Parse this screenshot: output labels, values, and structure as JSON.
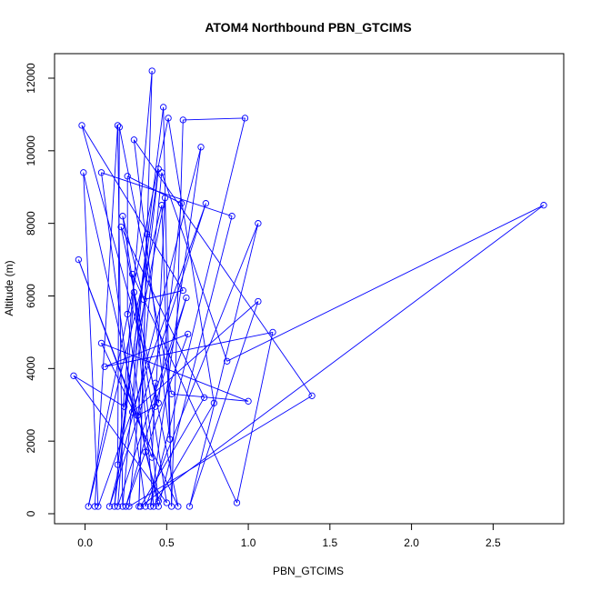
{
  "chart_data": {
    "type": "line",
    "title": "ATOM4 Northbound PBN_GTCIMS",
    "xlabel": "PBN_GTCIMS",
    "ylabel": "Altitude (m)",
    "xlim": [
      -0.07,
      2.81
    ],
    "ylim": [
      0,
      12200
    ],
    "x_ticks": [
      0.0,
      0.5,
      1.0,
      1.5,
      2.0,
      2.5
    ],
    "x_tick_labels": [
      "0.0",
      "0.5",
      "1.0",
      "1.5",
      "2.0",
      "2.5"
    ],
    "y_ticks": [
      0,
      2000,
      4000,
      6000,
      8000,
      10000,
      12000
    ],
    "y_tick_labels": [
      "0",
      "2000",
      "4000",
      "6000",
      "8000",
      "10000",
      "12000"
    ],
    "grid": false,
    "legend": "none",
    "series_color": "#0000ff",
    "marker": "open-circle",
    "points": [
      [
        0.06,
        200
      ],
      [
        0.2,
        10700
      ],
      [
        0.23,
        200
      ],
      [
        0.38,
        7700
      ],
      [
        0.33,
        200
      ],
      [
        0.41,
        12200
      ],
      [
        0.18,
        200
      ],
      [
        0.48,
        11200
      ],
      [
        0.53,
        200
      ],
      [
        0.6,
        10850
      ],
      [
        0.98,
        10900
      ],
      [
        0.4,
        200
      ],
      [
        0.71,
        10100
      ],
      [
        0.15,
        200
      ],
      [
        0.74,
        8550
      ],
      [
        0.08,
        200
      ],
      [
        -0.01,
        9400
      ],
      [
        0.45,
        200
      ],
      [
        0.9,
        8200
      ],
      [
        0.1,
        9400
      ],
      [
        0.37,
        200
      ],
      [
        1.06,
        8000
      ],
      [
        0.64,
        200
      ],
      [
        1.06,
        5850
      ],
      [
        0.29,
        2800
      ],
      [
        0.45,
        9500
      ],
      [
        0.2,
        1350
      ],
      [
        0.21,
        10650
      ],
      [
        0.53,
        3300
      ],
      [
        1.0,
        3100
      ],
      [
        0.1,
        4700
      ],
      [
        0.57,
        200
      ],
      [
        0.22,
        7900
      ],
      [
        0.73,
        3200
      ],
      [
        0.34,
        200
      ],
      [
        2.81,
        8500
      ],
      [
        0.87,
        4200
      ],
      [
        0.47,
        9400
      ],
      [
        0.27,
        200
      ],
      [
        1.39,
        3250
      ],
      [
        0.3,
        10300
      ],
      [
        0.52,
        2050
      ],
      [
        0.47,
        8500
      ],
      [
        0.02,
        200
      ],
      [
        0.51,
        10900
      ],
      [
        0.79,
        3050
      ],
      [
        0.42,
        200
      ],
      [
        0.29,
        6600
      ],
      [
        0.93,
        300
      ],
      [
        1.15,
        5000
      ],
      [
        0.12,
        4050
      ],
      [
        0.63,
        4950
      ],
      [
        0.25,
        200
      ],
      [
        0.62,
        5950
      ],
      [
        0.2,
        200
      ],
      [
        0.3,
        6100
      ],
      [
        0.45,
        350
      ],
      [
        0.37,
        1700
      ],
      [
        0.26,
        5500
      ],
      [
        0.26,
        9300
      ],
      [
        0.59,
        8550
      ],
      [
        0.45,
        3050
      ],
      [
        -0.02,
        10700
      ],
      [
        0.6,
        6150
      ],
      [
        0.36,
        5900
      ],
      [
        0.23,
        8200
      ],
      [
        0.5,
        300
      ],
      [
        -0.07,
        3800
      ],
      [
        0.24,
        2950
      ],
      [
        0.49,
        8700
      ],
      [
        0.43,
        2950
      ],
      [
        0.32,
        2700
      ],
      [
        -0.04,
        7000
      ],
      [
        0.41,
        1550
      ],
      [
        0.43,
        3600
      ]
    ]
  }
}
